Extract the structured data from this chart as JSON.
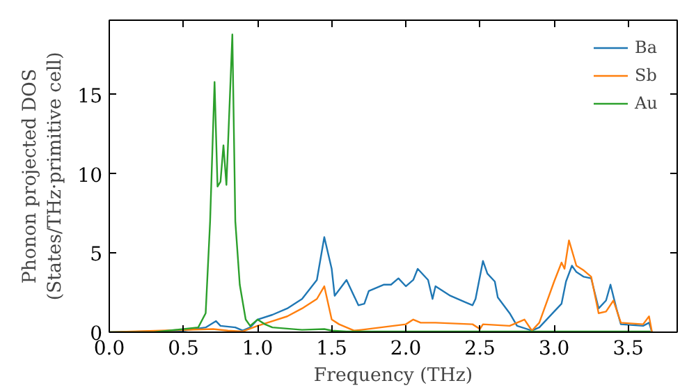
{
  "chart_data": {
    "type": "line",
    "xlabel": "Frequency (THz)",
    "ylabel": "Phonon projected DOS\n(States/THz·primitive cell)",
    "xlim": [
      0,
      3.83
    ],
    "ylim": [
      0,
      19.7
    ],
    "xticks": [
      {
        "value": 0,
        "label": "0.0"
      },
      {
        "value": 0.5,
        "label": "0.5"
      },
      {
        "value": 1,
        "label": "1.0"
      },
      {
        "value": 1.5,
        "label": "1.5"
      },
      {
        "value": 2,
        "label": "2.0"
      },
      {
        "value": 2.5,
        "label": "2.5"
      },
      {
        "value": 3,
        "label": "3.0"
      },
      {
        "value": 3.5,
        "label": "3.5"
      }
    ],
    "yticks": [
      0,
      5,
      10,
      15
    ],
    "legend": "top right",
    "grid": false,
    "series": [
      {
        "name": "Ba",
        "color": "#1f77b4",
        "x": [
          0,
          0.5,
          0.65,
          0.72,
          0.75,
          0.85,
          0.9,
          0.95,
          1.0,
          1.1,
          1.2,
          1.3,
          1.4,
          1.45,
          1.5,
          1.52,
          1.6,
          1.68,
          1.72,
          1.75,
          1.85,
          1.9,
          1.95,
          2.0,
          2.05,
          2.08,
          2.15,
          2.18,
          2.2,
          2.3,
          2.4,
          2.45,
          2.47,
          2.52,
          2.55,
          2.6,
          2.62,
          2.7,
          2.75,
          2.85,
          2.9,
          3.0,
          3.05,
          3.08,
          3.12,
          3.15,
          3.2,
          3.25,
          3.3,
          3.35,
          3.38,
          3.42,
          3.45,
          3.6,
          3.64,
          3.66
        ],
        "values": [
          0,
          0.1,
          0.3,
          0.7,
          0.4,
          0.3,
          0.1,
          0.3,
          0.8,
          1.1,
          1.5,
          2.1,
          3.3,
          6.0,
          4.0,
          2.3,
          3.3,
          1.7,
          1.8,
          2.6,
          3.0,
          3.0,
          3.4,
          2.9,
          3.3,
          4.0,
          3.3,
          2.1,
          2.9,
          2.3,
          1.9,
          1.7,
          2.1,
          4.5,
          3.7,
          3.2,
          2.2,
          1.2,
          0.4,
          0.1,
          0.3,
          1.3,
          1.8,
          3.2,
          4.2,
          3.8,
          3.5,
          3.4,
          1.5,
          2.0,
          3.0,
          1.5,
          0.5,
          0.4,
          0.6,
          0
        ]
      },
      {
        "name": "Sb",
        "color": "#ff7f0e",
        "x": [
          0,
          0.7,
          0.8,
          0.9,
          1.0,
          1.1,
          1.2,
          1.3,
          1.4,
          1.45,
          1.5,
          1.55,
          1.65,
          1.7,
          2.0,
          2.05,
          2.1,
          2.2,
          2.45,
          2.5,
          2.52,
          2.7,
          2.8,
          2.85,
          2.9,
          3.0,
          3.05,
          3.07,
          3.1,
          3.15,
          3.2,
          3.25,
          3.3,
          3.35,
          3.4,
          3.45,
          3.6,
          3.64,
          3.66
        ],
        "values": [
          0,
          0.2,
          0.1,
          0.05,
          0.4,
          0.7,
          1.0,
          1.5,
          2.1,
          2.9,
          0.8,
          0.5,
          0.1,
          0.15,
          0.5,
          0.8,
          0.6,
          0.6,
          0.5,
          0.2,
          0.5,
          0.4,
          0.8,
          0.1,
          0.6,
          3.2,
          4.4,
          4.0,
          5.8,
          4.2,
          3.9,
          3.5,
          1.2,
          1.3,
          2.0,
          0.6,
          0.5,
          1.0,
          0
        ]
      },
      {
        "name": "Au",
        "color": "#2ca02c",
        "x": [
          0,
          0.3,
          0.6,
          0.65,
          0.68,
          0.71,
          0.73,
          0.75,
          0.77,
          0.79,
          0.83,
          0.85,
          0.88,
          0.92,
          0.95,
          1.0,
          1.05,
          1.1,
          1.3,
          1.45,
          1.5,
          1.6,
          3.65
        ],
        "values": [
          0,
          0,
          0.3,
          1.2,
          7,
          15.8,
          9.2,
          9.5,
          11.8,
          9.3,
          18.8,
          7,
          3,
          0.8,
          0.4,
          0.8,
          0.5,
          0.3,
          0.15,
          0.2,
          0.1,
          0.05,
          0.05
        ]
      }
    ]
  }
}
